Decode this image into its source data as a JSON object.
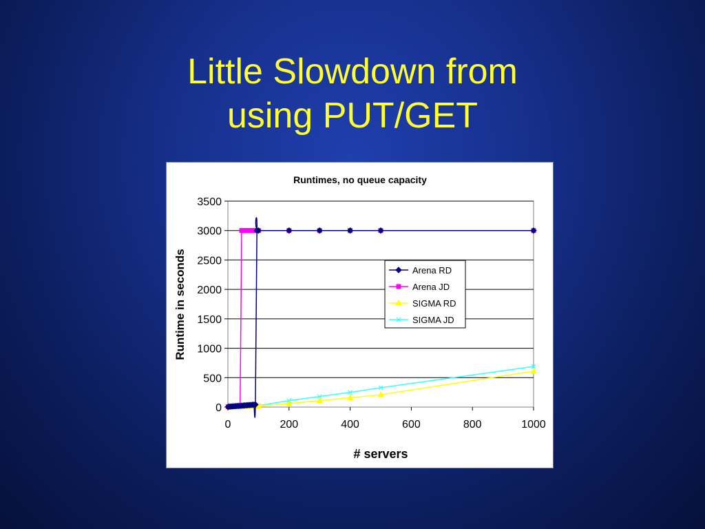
{
  "slide": {
    "title_line1": "Little Slowdown from",
    "title_line2": "using PUT/GET"
  },
  "chart_data": {
    "type": "line",
    "title": "Runtimes, no queue capacity",
    "xlabel": "# servers",
    "ylabel": "Runtime in seconds",
    "xlim": [
      0,
      1000
    ],
    "ylim": [
      0,
      3500
    ],
    "xticks": [
      0,
      200,
      400,
      600,
      800,
      1000
    ],
    "yticks": [
      0,
      500,
      1000,
      1500,
      2000,
      2500,
      3000,
      3500
    ],
    "grid": "horizontal",
    "legend_position": "right",
    "series": [
      {
        "name": "Arena RD",
        "color": "#000080",
        "marker": "diamond",
        "smooth": true,
        "x": [
          1,
          5,
          10,
          15,
          20,
          25,
          30,
          35,
          40,
          45,
          50,
          55,
          60,
          65,
          70,
          75,
          80,
          85,
          90,
          95,
          100,
          200,
          300,
          400,
          500,
          1000
        ],
        "y": [
          5,
          8,
          10,
          12,
          14,
          16,
          18,
          20,
          22,
          24,
          26,
          28,
          30,
          32,
          34,
          36,
          38,
          40,
          42,
          3000,
          3000,
          3000,
          3000,
          3000,
          3000,
          3000
        ]
      },
      {
        "name": "Arena JD",
        "color": "#ff00ff",
        "marker": "square",
        "smooth": false,
        "x": [
          1,
          5,
          10,
          15,
          20,
          25,
          30,
          35,
          40,
          45,
          50,
          55,
          60,
          65,
          70,
          75,
          80,
          85,
          90,
          95,
          100,
          200,
          300,
          400,
          500,
          1000
        ],
        "y": [
          5,
          8,
          10,
          12,
          14,
          16,
          18,
          20,
          22,
          3000,
          3000,
          3000,
          3000,
          3000,
          3000,
          3000,
          3000,
          3000,
          3000,
          3000,
          3000,
          3000,
          3000,
          3000,
          3000,
          3000
        ]
      },
      {
        "name": "SIGMA RD",
        "color": "#ffff00",
        "marker": "triangle",
        "smooth": false,
        "x": [
          1,
          5,
          10,
          15,
          20,
          25,
          30,
          35,
          40,
          45,
          50,
          55,
          60,
          65,
          70,
          75,
          80,
          85,
          90,
          95,
          100,
          200,
          300,
          400,
          500,
          1000
        ],
        "y": [
          1,
          2,
          3,
          4,
          5,
          6,
          7,
          8,
          9,
          10,
          11,
          12,
          13,
          14,
          15,
          16,
          17,
          18,
          19,
          20,
          22,
          60,
          110,
          160,
          210,
          610
        ]
      },
      {
        "name": "SIGMA JD",
        "color": "#33ffff",
        "marker": "x",
        "smooth": false,
        "x": [
          1,
          5,
          10,
          15,
          20,
          25,
          30,
          35,
          40,
          45,
          50,
          55,
          60,
          65,
          70,
          75,
          80,
          85,
          90,
          95,
          100,
          200,
          300,
          400,
          500,
          1000
        ],
        "y": [
          2,
          3,
          4,
          5,
          6,
          7,
          8,
          9,
          10,
          11,
          12,
          13,
          14,
          15,
          16,
          17,
          18,
          19,
          20,
          22,
          25,
          110,
          180,
          250,
          330,
          690
        ]
      }
    ]
  }
}
